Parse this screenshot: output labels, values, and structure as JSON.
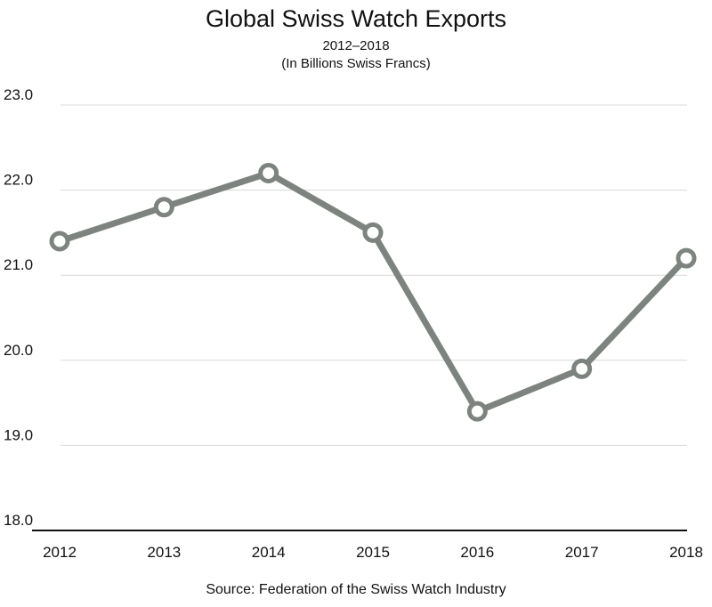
{
  "title": "Global Swiss Watch Exports",
  "subtitle_lines": [
    "2012–2018",
    "(In Billions Swiss Francs)"
  ],
  "source": "Source: Federation of the Swiss Watch Industry",
  "colors": {
    "line": "#7d837f",
    "marker_fill": "#ffffff",
    "grid": "#d9d9d9",
    "axis": "#111111"
  },
  "chart_data": {
    "type": "line",
    "x": [
      "2012",
      "2013",
      "2014",
      "2015",
      "2016",
      "2017",
      "2018"
    ],
    "series": [
      {
        "values": [
          21.4,
          21.8,
          22.2,
          21.5,
          19.4,
          19.9,
          21.2
        ]
      }
    ],
    "title": "Global Swiss Watch Exports",
    "subtitle": "2012–2018 (In Billions Swiss Francs)",
    "xlabel": "",
    "ylabel": "",
    "ylim": [
      18.0,
      23.0
    ],
    "yticks": [
      "18.0",
      "19.0",
      "20.0",
      "21.0",
      "22.0",
      "23.0"
    ],
    "grid": true,
    "legend": "none"
  }
}
